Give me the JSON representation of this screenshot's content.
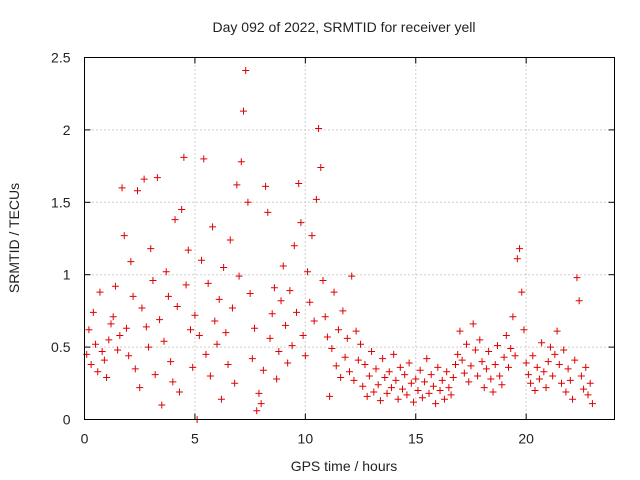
{
  "chart_data": {
    "type": "scatter",
    "title": "Day 092 of 2022, SRMTID for receiver yell",
    "xlabel": "GPS time / hours",
    "ylabel": "SRMTID / TECUs",
    "xlim": [
      0,
      24
    ],
    "ylim": [
      0,
      2.5
    ],
    "x_ticks": [
      0,
      5,
      10,
      15,
      20
    ],
    "y_ticks": [
      0,
      0.5,
      1,
      1.5,
      2,
      2.5
    ],
    "x_tick_labels": [
      "0",
      "5",
      "10",
      "15",
      "20"
    ],
    "y_tick_labels": [
      "0",
      "0.5",
      "1",
      "1.5",
      "2",
      "2.5"
    ],
    "grid": true,
    "marker": "+",
    "marker_color": "#e00000",
    "series": [
      {
        "name": "SRMTID",
        "points": [
          [
            0.1,
            0.45
          ],
          [
            0.2,
            0.62
          ],
          [
            0.3,
            0.38
          ],
          [
            0.4,
            0.74
          ],
          [
            0.5,
            0.52
          ],
          [
            0.6,
            0.33
          ],
          [
            0.7,
            0.88
          ],
          [
            0.8,
            0.47
          ],
          [
            0.9,
            0.41
          ],
          [
            1.0,
            0.29
          ],
          [
            1.1,
            0.55
          ],
          [
            1.2,
            0.66
          ],
          [
            1.3,
            0.71
          ],
          [
            1.4,
            0.92
          ],
          [
            1.5,
            0.48
          ],
          [
            1.6,
            0.58
          ],
          [
            1.7,
            1.6
          ],
          [
            1.8,
            1.27
          ],
          [
            1.9,
            0.63
          ],
          [
            2.0,
            0.44
          ],
          [
            2.1,
            1.09
          ],
          [
            2.2,
            0.85
          ],
          [
            2.3,
            0.35
          ],
          [
            2.4,
            1.58
          ],
          [
            2.5,
            0.22
          ],
          [
            2.6,
            0.77
          ],
          [
            2.7,
            1.66
          ],
          [
            2.8,
            0.64
          ],
          [
            2.9,
            0.5
          ],
          [
            3.0,
            1.18
          ],
          [
            3.1,
            0.96
          ],
          [
            3.2,
            0.31
          ],
          [
            3.3,
            1.67
          ],
          [
            3.4,
            0.69
          ],
          [
            3.5,
            0.1
          ],
          [
            3.6,
            0.54
          ],
          [
            3.7,
            1.02
          ],
          [
            3.8,
            0.85
          ],
          [
            3.9,
            0.4
          ],
          [
            4.0,
            0.26
          ],
          [
            4.1,
            1.38
          ],
          [
            4.2,
            0.78
          ],
          [
            4.3,
            0.19
          ],
          [
            4.4,
            1.45
          ],
          [
            4.5,
            1.81
          ],
          [
            4.6,
            0.93
          ],
          [
            4.7,
            1.17
          ],
          [
            4.8,
            0.62
          ],
          [
            4.9,
            0.36
          ],
          [
            5.0,
            0.72
          ],
          [
            5.1,
            0.0
          ],
          [
            5.2,
            0.58
          ],
          [
            5.3,
            1.1
          ],
          [
            5.4,
            1.8
          ],
          [
            5.5,
            0.45
          ],
          [
            5.6,
            0.94
          ],
          [
            5.7,
            0.3
          ],
          [
            5.8,
            1.33
          ],
          [
            5.9,
            0.68
          ],
          [
            6.0,
            0.52
          ],
          [
            6.1,
            0.83
          ],
          [
            6.2,
            0.14
          ],
          [
            6.3,
            1.05
          ],
          [
            6.4,
            0.6
          ],
          [
            6.5,
            0.38
          ],
          [
            6.6,
            1.24
          ],
          [
            6.7,
            0.77
          ],
          [
            6.8,
            0.25
          ],
          [
            6.9,
            1.62
          ],
          [
            7.0,
            0.99
          ],
          [
            7.1,
            1.78
          ],
          [
            7.2,
            2.13
          ],
          [
            7.3,
            2.41
          ],
          [
            7.4,
            1.5
          ],
          [
            7.5,
            0.87
          ],
          [
            7.6,
            0.42
          ],
          [
            7.7,
            0.63
          ],
          [
            7.8,
            0.06
          ],
          [
            7.9,
            0.18
          ],
          [
            8.0,
            0.11
          ],
          [
            8.1,
            0.34
          ],
          [
            8.2,
            1.61
          ],
          [
            8.3,
            1.43
          ],
          [
            8.4,
            0.56
          ],
          [
            8.5,
            0.73
          ],
          [
            8.6,
            0.91
          ],
          [
            8.7,
            0.28
          ],
          [
            8.8,
            0.47
          ],
          [
            8.9,
            0.82
          ],
          [
            9.0,
            1.06
          ],
          [
            9.1,
            0.65
          ],
          [
            9.2,
            0.39
          ],
          [
            9.3,
            0.89
          ],
          [
            9.4,
            0.51
          ],
          [
            9.5,
            1.2
          ],
          [
            9.6,
            0.74
          ],
          [
            9.7,
            1.63
          ],
          [
            9.8,
            1.36
          ],
          [
            9.9,
            0.58
          ],
          [
            10.0,
            0.44
          ],
          [
            10.1,
            1.02
          ],
          [
            10.2,
            0.81
          ],
          [
            10.3,
            1.27
          ],
          [
            10.4,
            0.68
          ],
          [
            10.5,
            1.52
          ],
          [
            10.6,
            2.01
          ],
          [
            10.7,
            1.74
          ],
          [
            10.8,
            0.96
          ],
          [
            10.9,
            0.71
          ],
          [
            11.0,
            0.57
          ],
          [
            11.1,
            0.16
          ],
          [
            11.2,
            0.49
          ],
          [
            11.3,
            0.88
          ],
          [
            11.4,
            0.37
          ],
          [
            11.5,
            0.62
          ],
          [
            11.6,
            0.29
          ],
          [
            11.7,
            0.75
          ],
          [
            11.8,
            0.43
          ],
          [
            11.9,
            0.56
          ],
          [
            12.0,
            0.33
          ],
          [
            12.1,
            0.99
          ],
          [
            12.2,
            0.27
          ],
          [
            12.3,
            0.61
          ],
          [
            12.4,
            0.41
          ],
          [
            12.5,
            0.52
          ],
          [
            12.6,
            0.23
          ],
          [
            12.7,
            0.38
          ],
          [
            12.8,
            0.16
          ],
          [
            12.9,
            0.3
          ],
          [
            13.0,
            0.47
          ],
          [
            13.1,
            0.19
          ],
          [
            13.2,
            0.35
          ],
          [
            13.3,
            0.24
          ],
          [
            13.4,
            0.13
          ],
          [
            13.5,
            0.42
          ],
          [
            13.6,
            0.29
          ],
          [
            13.7,
            0.18
          ],
          [
            13.8,
            0.33
          ],
          [
            13.9,
            0.22
          ],
          [
            14.0,
            0.45
          ],
          [
            14.1,
            0.27
          ],
          [
            14.2,
            0.14
          ],
          [
            14.3,
            0.36
          ],
          [
            14.4,
            0.21
          ],
          [
            14.5,
            0.31
          ],
          [
            14.6,
            0.17
          ],
          [
            14.7,
            0.39
          ],
          [
            14.8,
            0.25
          ],
          [
            14.9,
            0.12
          ],
          [
            15.0,
            0.28
          ],
          [
            15.1,
            0.2
          ],
          [
            15.2,
            0.34
          ],
          [
            15.3,
            0.15
          ],
          [
            15.4,
            0.26
          ],
          [
            15.5,
            0.42
          ],
          [
            15.6,
            0.18
          ],
          [
            15.7,
            0.31
          ],
          [
            15.8,
            0.23
          ],
          [
            15.9,
            0.11
          ],
          [
            16.0,
            0.36
          ],
          [
            16.1,
            0.2
          ],
          [
            16.2,
            0.27
          ],
          [
            16.3,
            0.14
          ],
          [
            16.4,
            0.33
          ],
          [
            16.5,
            0.22
          ],
          [
            16.6,
            0.17
          ],
          [
            16.7,
            0.29
          ],
          [
            16.8,
            0.38
          ],
          [
            16.9,
            0.45
          ],
          [
            17.0,
            0.61
          ],
          [
            17.1,
            0.41
          ],
          [
            17.2,
            0.32
          ],
          [
            17.3,
            0.52
          ],
          [
            17.4,
            0.26
          ],
          [
            17.5,
            0.37
          ],
          [
            17.6,
            0.66
          ],
          [
            17.7,
            0.48
          ],
          [
            17.8,
            0.3
          ],
          [
            17.9,
            0.55
          ],
          [
            18.0,
            0.4
          ],
          [
            18.1,
            0.22
          ],
          [
            18.2,
            0.35
          ],
          [
            18.3,
            0.47
          ],
          [
            18.4,
            0.28
          ],
          [
            18.5,
            0.19
          ],
          [
            18.6,
            0.38
          ],
          [
            18.7,
            0.51
          ],
          [
            18.8,
            0.3
          ],
          [
            18.9,
            0.24
          ],
          [
            19.0,
            0.43
          ],
          [
            19.1,
            0.58
          ],
          [
            19.2,
            0.36
          ],
          [
            19.3,
            0.49
          ],
          [
            19.4,
            0.71
          ],
          [
            19.5,
            0.44
          ],
          [
            19.6,
            1.11
          ],
          [
            19.7,
            1.18
          ],
          [
            19.8,
            0.88
          ],
          [
            19.9,
            0.62
          ],
          [
            20.0,
            0.39
          ],
          [
            20.1,
            0.31
          ],
          [
            20.2,
            0.25
          ],
          [
            20.3,
            0.44
          ],
          [
            20.4,
            0.2
          ],
          [
            20.5,
            0.36
          ],
          [
            20.6,
            0.28
          ],
          [
            20.7,
            0.53
          ],
          [
            20.8,
            0.33
          ],
          [
            20.9,
            0.22
          ],
          [
            21.0,
            0.4
          ],
          [
            21.1,
            0.5
          ],
          [
            21.2,
            0.3
          ],
          [
            21.3,
            0.45
          ],
          [
            21.4,
            0.61
          ],
          [
            21.5,
            0.38
          ],
          [
            21.6,
            0.25
          ],
          [
            21.7,
            0.48
          ],
          [
            21.8,
            0.19
          ],
          [
            21.9,
            0.35
          ],
          [
            22.0,
            0.27
          ],
          [
            22.1,
            0.14
          ],
          [
            22.2,
            0.41
          ],
          [
            22.3,
            0.98
          ],
          [
            22.4,
            0.82
          ],
          [
            22.5,
            0.3
          ],
          [
            22.6,
            0.21
          ],
          [
            22.7,
            0.36
          ],
          [
            22.8,
            0.17
          ],
          [
            22.9,
            0.25
          ],
          [
            23.0,
            0.11
          ]
        ]
      }
    ]
  }
}
